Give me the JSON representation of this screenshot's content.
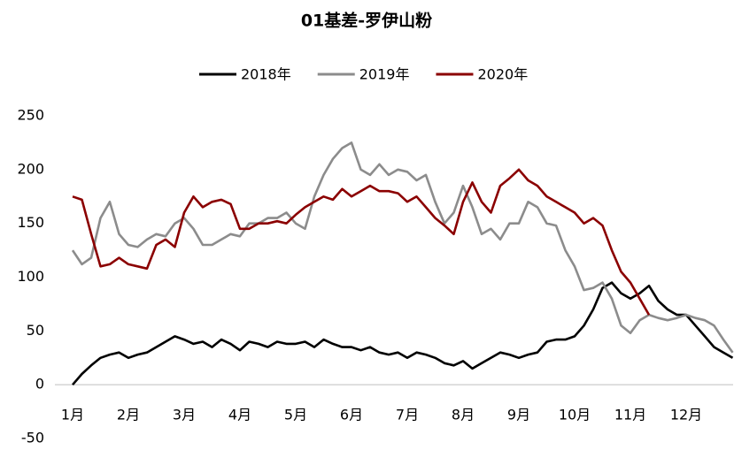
{
  "chart_data": {
    "type": "line",
    "title": "01基差-罗伊山粉",
    "categories": [
      "1月",
      null,
      null,
      null,
      null,
      null,
      "2月",
      null,
      null,
      null,
      null,
      null,
      "3月",
      null,
      null,
      null,
      null,
      null,
      "4月",
      null,
      null,
      null,
      null,
      null,
      "5月",
      null,
      null,
      null,
      null,
      null,
      "6月",
      null,
      null,
      null,
      null,
      null,
      "7月",
      null,
      null,
      null,
      null,
      null,
      "8月",
      null,
      null,
      null,
      null,
      null,
      "9月",
      null,
      null,
      null,
      null,
      null,
      "10月",
      null,
      null,
      null,
      null,
      null,
      "11月",
      null,
      null,
      null,
      null,
      null,
      "12月",
      null,
      null,
      null,
      null,
      null
    ],
    "series": [
      {
        "name": "2018年",
        "color": "#000000",
        "values": [
          0,
          10,
          18,
          25,
          28,
          30,
          25,
          28,
          30,
          35,
          40,
          45,
          42,
          38,
          40,
          35,
          42,
          38,
          32,
          40,
          38,
          35,
          40,
          38,
          38,
          40,
          35,
          42,
          38,
          35,
          35,
          32,
          35,
          30,
          28,
          30,
          25,
          30,
          28,
          25,
          20,
          18,
          22,
          15,
          20,
          25,
          30,
          28,
          25,
          28,
          30,
          40,
          42,
          42,
          45,
          55,
          70,
          90,
          95,
          85,
          80,
          85,
          92,
          78,
          70,
          65,
          65,
          55,
          45,
          35,
          30,
          25
        ]
      },
      {
        "name": "2019年",
        "color": "#8c8c8c",
        "values": [
          125,
          112,
          118,
          155,
          170,
          140,
          130,
          128,
          135,
          140,
          138,
          150,
          155,
          145,
          130,
          130,
          135,
          140,
          138,
          150,
          150,
          155,
          155,
          160,
          150,
          145,
          175,
          195,
          210,
          220,
          225,
          200,
          195,
          205,
          195,
          200,
          198,
          190,
          195,
          170,
          150,
          160,
          185,
          165,
          140,
          145,
          135,
          150,
          150,
          170,
          165,
          150,
          148,
          125,
          110,
          88,
          90,
          95,
          80,
          55,
          48,
          60,
          65,
          62,
          60,
          62,
          65,
          62,
          60,
          55,
          42,
          30
        ]
      },
      {
        "name": "2020年",
        "color": "#8b0000",
        "values": [
          175,
          172,
          140,
          110,
          112,
          118,
          112,
          110,
          108,
          130,
          135,
          128,
          160,
          175,
          165,
          170,
          172,
          168,
          145,
          145,
          150,
          150,
          152,
          150,
          158,
          165,
          170,
          175,
          172,
          182,
          175,
          180,
          185,
          180,
          180,
          178,
          170,
          175,
          165,
          155,
          148,
          140,
          170,
          188,
          170,
          160,
          185,
          192,
          200,
          190,
          185,
          175,
          170,
          165,
          160,
          150,
          155,
          148,
          125,
          105,
          95,
          80,
          65,
          null,
          null,
          null,
          null,
          null,
          null,
          null,
          null,
          null
        ]
      }
    ],
    "ylim": [
      -50,
      250
    ],
    "yticks": [
      -50,
      0,
      50,
      100,
      150,
      200,
      250
    ],
    "grid": false,
    "legend": "top"
  }
}
